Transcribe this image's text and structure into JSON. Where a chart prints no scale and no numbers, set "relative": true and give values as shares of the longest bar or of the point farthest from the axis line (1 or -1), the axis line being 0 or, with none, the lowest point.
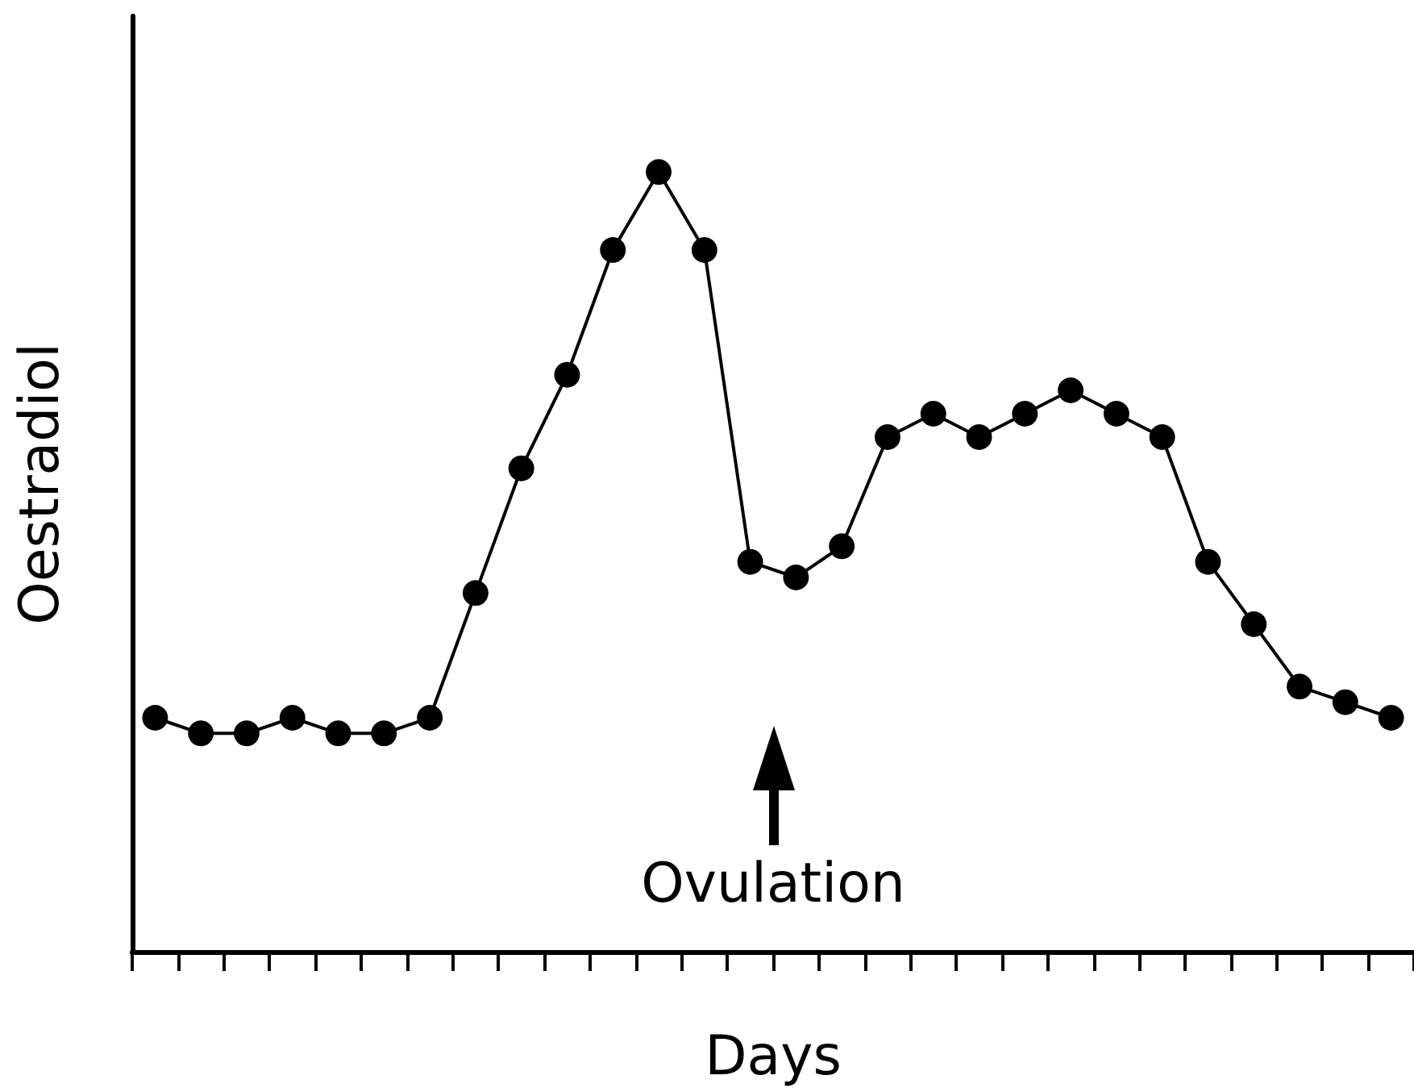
{
  "chart_data": {
    "type": "line",
    "relative": true,
    "xlabel": "Days",
    "ylabel": "Oestradiol",
    "annotations": [
      "Ovulation"
    ],
    "marker": "circle",
    "line_style": "solid",
    "categories": [
      null,
      null,
      null,
      null,
      null,
      null,
      null,
      null,
      null,
      null,
      null,
      null,
      null,
      null,
      null,
      null,
      null,
      null,
      null,
      null,
      null,
      null,
      null,
      null,
      null,
      null,
      null,
      null
    ],
    "series": [
      {
        "color": "#000000",
        "values": [
          0.3,
          0.28,
          0.28,
          0.3,
          0.28,
          0.28,
          0.3,
          0.46,
          0.62,
          0.74,
          0.9,
          1,
          0.9,
          0.5,
          0.48,
          0.52,
          0.66,
          0.69,
          0.66,
          0.69,
          0.72,
          0.69,
          0.66,
          0.5,
          0.42,
          0.34,
          0.32,
          0.3
        ]
      }
    ]
  }
}
